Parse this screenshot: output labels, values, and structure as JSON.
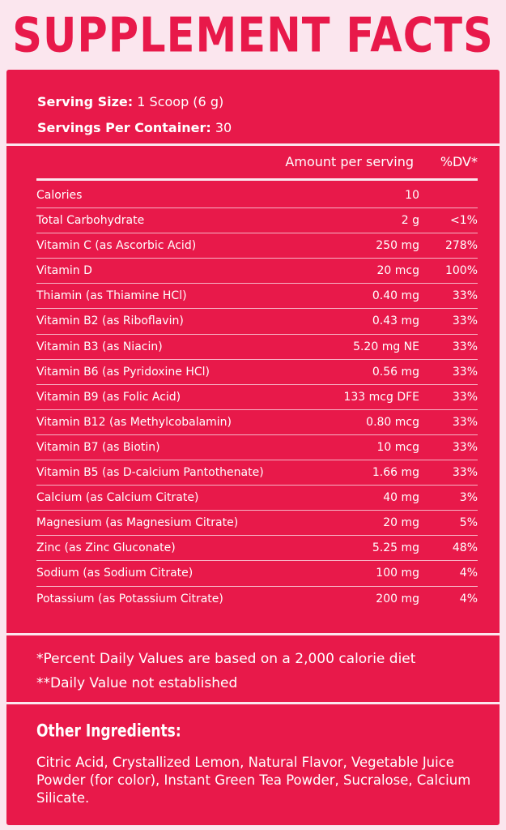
{
  "title": "SUPPLEMENT FACTS",
  "serving": {
    "size_label": "Serving Size:",
    "size_value": "1 Scoop (6 g)",
    "per_container_label": "Servings Per Container:",
    "per_container_value": "30"
  },
  "table": {
    "header_amount": "Amount per serving",
    "header_dv": "%DV*",
    "rows": [
      {
        "name": "Calories",
        "amount": "10",
        "dv": ""
      },
      {
        "name": "Total Carbohydrate",
        "amount": "2 g",
        "dv": "<1%"
      },
      {
        "name": "Vitamin C (as Ascorbic Acid)",
        "amount": "250 mg",
        "dv": "278%"
      },
      {
        "name": "Vitamin D",
        "amount": "20 mcg",
        "dv": "100%"
      },
      {
        "name": "Thiamin (as Thiamine HCl)",
        "amount": "0.40 mg",
        "dv": "33%"
      },
      {
        "name": "Vitamin B2 (as Riboflavin)",
        "amount": "0.43 mg",
        "dv": "33%"
      },
      {
        "name": "Vitamin B3 (as Niacin)",
        "amount": "5.20 mg NE",
        "dv": "33%"
      },
      {
        "name": "Vitamin B6 (as Pyridoxine HCl)",
        "amount": "0.56 mg",
        "dv": "33%"
      },
      {
        "name": "Vitamin B9 (as Folic Acid)",
        "amount": "133 mcg DFE",
        "dv": "33%"
      },
      {
        "name": "Vitamin B12 (as Methylcobalamin)",
        "amount": "0.80 mcg",
        "dv": "33%"
      },
      {
        "name": "Vitamin B7 (as Biotin)",
        "amount": "10 mcg",
        "dv": "33%"
      },
      {
        "name": "Vitamin B5 (as D-calcium Pantothenate)",
        "amount": "1.66 mg",
        "dv": "33%"
      },
      {
        "name": "Calcium (as Calcium Citrate)",
        "amount": "40 mg",
        "dv": "3%"
      },
      {
        "name": "Magnesium (as Magnesium Citrate)",
        "amount": "20 mg",
        "dv": "5%"
      },
      {
        "name": "Zinc (as Zinc Gluconate)",
        "amount": "5.25 mg",
        "dv": "48%"
      },
      {
        "name": "Sodium (as Sodium Citrate)",
        "amount": "100 mg",
        "dv": "4%"
      },
      {
        "name": "Potassium (as Potassium Citrate)",
        "amount": "200 mg",
        "dv": "4%"
      }
    ]
  },
  "footnotes": {
    "line1": "*Percent Daily Values are based on a 2,000 calorie diet",
    "line2": "**Daily Value not established"
  },
  "other_ingredients": {
    "title": "Other Ingredients:",
    "text": "Citric Acid, Crystallized Lemon, Natural Flavor, Vegetable Juice Powder (for color), Instant Green Tea Powder, Sucralose, Calcium Silicate."
  },
  "colors": {
    "accent": "#e8194a",
    "background": "#fbe6ee"
  }
}
